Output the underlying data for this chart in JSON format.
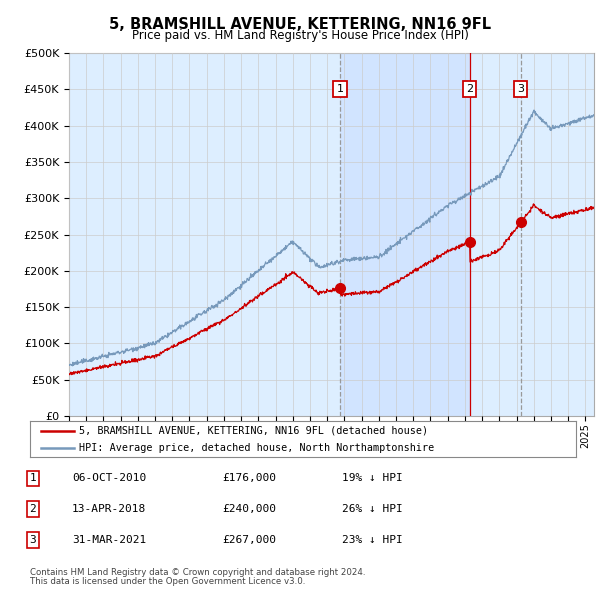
{
  "title": "5, BRAMSHILL AVENUE, KETTERING, NN16 9FL",
  "subtitle": "Price paid vs. HM Land Registry's House Price Index (HPI)",
  "ylabel_ticks": [
    "£0",
    "£50K",
    "£100K",
    "£150K",
    "£200K",
    "£250K",
    "£300K",
    "£350K",
    "£400K",
    "£450K",
    "£500K"
  ],
  "ytick_values": [
    0,
    50000,
    100000,
    150000,
    200000,
    250000,
    300000,
    350000,
    400000,
    450000,
    500000
  ],
  "x_start_year": 1995,
  "x_end_year": 2025,
  "sale_dates": [
    2010.75,
    2018.28,
    2021.25
  ],
  "sale_prices": [
    176000,
    240000,
    267000
  ],
  "sale_labels": [
    "1",
    "2",
    "3"
  ],
  "legend_line1": "5, BRAMSHILL AVENUE, KETTERING, NN16 9FL (detached house)",
  "legend_line2": "HPI: Average price, detached house, North Northamptonshire",
  "table_rows": [
    {
      "num": "1",
      "date": "06-OCT-2010",
      "price": "£176,000",
      "hpi": "19% ↓ HPI"
    },
    {
      "num": "2",
      "date": "13-APR-2018",
      "price": "£240,000",
      "hpi": "26% ↓ HPI"
    },
    {
      "num": "3",
      "date": "31-MAR-2021",
      "price": "£267,000",
      "hpi": "23% ↓ HPI"
    }
  ],
  "footnote1": "Contains HM Land Registry data © Crown copyright and database right 2024.",
  "footnote2": "This data is licensed under the Open Government Licence v3.0.",
  "red_color": "#cc0000",
  "blue_color": "#7799bb",
  "blue_light": "#ddeeff",
  "shade_color": "#cce0ff",
  "grid_color": "#cccccc",
  "vline1_color": "#999999",
  "vline2_color": "#cc0000",
  "vline3_color": "#999999",
  "box_color": "#cc0000",
  "title_fontsize": 11,
  "subtitle_fontsize": 9
}
